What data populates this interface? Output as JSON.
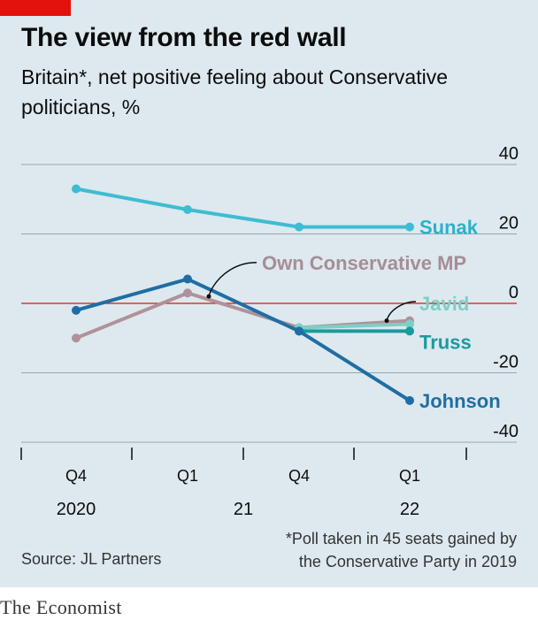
{
  "header": {
    "title": "The view from the red wall",
    "subtitle": "Britain*, net positive feeling about Conservative politicians, %"
  },
  "footer": {
    "source": "Source: JL Partners",
    "footnote_line1": "*Poll taken in 45 seats gained by",
    "footnote_line2": "the Conservative Party in 2019",
    "brand": "The Economist"
  },
  "colors": {
    "background": "#dde9ef",
    "accent": "#e3120b",
    "zero_line": "#e3120b",
    "grid": "#9aa5ab"
  },
  "chart_data": {
    "type": "line",
    "ylim": [
      -40,
      40
    ],
    "yticks": [
      40,
      20,
      0,
      -20,
      -40
    ],
    "xticks": [
      {
        "label": "Q4",
        "year": "2020"
      },
      {
        "label": "Q1",
        "year": "21"
      },
      {
        "label": "Q4",
        "year": ""
      },
      {
        "label": "Q1",
        "year": "22"
      }
    ],
    "year_labels": [
      "2020",
      "21",
      "22"
    ],
    "x_points": [
      "Q4 2020",
      "Q1 2021",
      "Q4 2021",
      "Q1 2022"
    ],
    "grid": true,
    "series": [
      {
        "name": "Sunak",
        "color": "#3ebcd2",
        "width": 4,
        "values": [
          33,
          27,
          22,
          22
        ]
      },
      {
        "name": "Own Conservative MP",
        "color": "#b19199",
        "width": 4,
        "values": [
          -10,
          3,
          -7,
          -5
        ]
      },
      {
        "name": "Javid",
        "color": "#7dcfc6",
        "width": 4,
        "values": [
          null,
          null,
          -7,
          -6
        ]
      },
      {
        "name": "Truss",
        "color": "#1a9a9f",
        "width": 4,
        "values": [
          null,
          null,
          -8,
          -8
        ]
      },
      {
        "name": "Johnson",
        "color": "#1f6ea3",
        "width": 4,
        "values": [
          -2,
          7,
          -8,
          -28
        ]
      }
    ]
  }
}
